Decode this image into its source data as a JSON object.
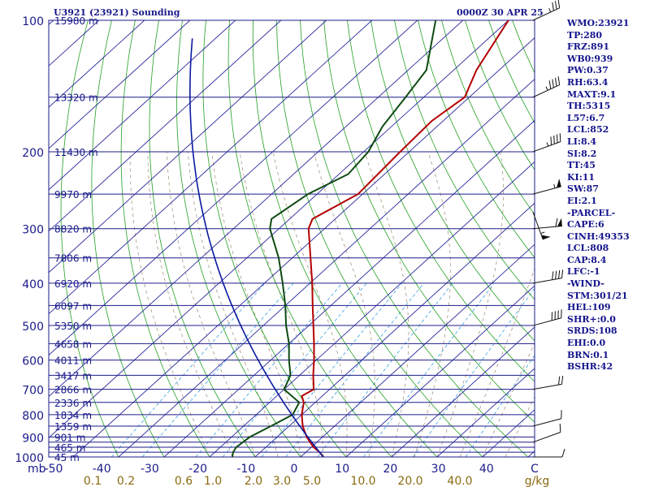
{
  "header": {
    "station_title": "U3921 (23921) Sounding",
    "valid_time": "0000Z 30 APR 25"
  },
  "colors": {
    "isobar": "#1c1c8a",
    "isotherm": "#2a2a9e",
    "dry_adiabat": "#22a022",
    "moist_adiabat": "#9c8a70",
    "mixing_ratio": "#3aa0e0",
    "temperature": "#b40000",
    "dewpoint": "#0d4a12",
    "parcel": "#0a1aa0",
    "label_text": "#1a1a8a",
    "mixing_label_text": "#8a6a10",
    "wind_barb": "#111111"
  },
  "chart_data": {
    "type": "skew-t",
    "pressure_ticks": [
      "100",
      "200",
      "300",
      "400",
      "500",
      "600",
      "700",
      "800",
      "900",
      "1000"
    ],
    "pressure_levels_hpa": [
      100,
      150,
      200,
      250,
      300,
      350,
      400,
      450,
      500,
      550,
      600,
      650,
      700,
      750,
      800,
      850,
      900,
      925,
      950,
      975,
      1000
    ],
    "heights": [
      {
        "p": 100,
        "label": "15980 m"
      },
      {
        "p": 150,
        "label": "13320 m"
      },
      {
        "p": 200,
        "label": "11430 m"
      },
      {
        "p": 250,
        "label": "9970 m"
      },
      {
        "p": 300,
        "label": "8820 m"
      },
      {
        "p": 350,
        "label": "7806 m"
      },
      {
        "p": 400,
        "label": "6920 m"
      },
      {
        "p": 450,
        "label": "6097 m"
      },
      {
        "p": 500,
        "label": "5350 m"
      },
      {
        "p": 550,
        "label": "4658 m"
      },
      {
        "p": 600,
        "label": "4011 m"
      },
      {
        "p": 650,
        "label": "3417 m"
      },
      {
        "p": 700,
        "label": "2866 m"
      },
      {
        "p": 750,
        "label": "2336 m"
      },
      {
        "p": 800,
        "label": "1834 m"
      },
      {
        "p": 850,
        "label": "1359 m"
      },
      {
        "p": 900,
        "label": "901 m"
      },
      {
        "p": 950,
        "label": "465 m"
      },
      {
        "p": 1000,
        "label": "45 m"
      }
    ],
    "x_axis_unit": "mb",
    "temperature_ticks": [
      "-50",
      "-40",
      "-30",
      "-20",
      "-10",
      "0",
      "10",
      "20",
      "30",
      "40",
      "C"
    ],
    "mixing_ratio_labels": [
      "0.1",
      "0.2",
      "0.6",
      "1.0",
      "2.0",
      "3.0",
      "5.0",
      "10.0",
      "20.0",
      "40.0",
      "g/kg"
    ],
    "temperature_profile": [
      {
        "p": 1000,
        "t": 5.0
      },
      {
        "p": 975,
        "t": 3.0
      },
      {
        "p": 950,
        "t": 0.5
      },
      {
        "p": 925,
        "t": -1.5
      },
      {
        "p": 900,
        "t": -3.5
      },
      {
        "p": 850,
        "t": -7.0
      },
      {
        "p": 800,
        "t": -10.0
      },
      {
        "p": 750,
        "t": -12.5
      },
      {
        "p": 725,
        "t": -14.5
      },
      {
        "p": 700,
        "t": -13.5
      },
      {
        "p": 650,
        "t": -17.0
      },
      {
        "p": 600,
        "t": -20.5
      },
      {
        "p": 550,
        "t": -24.5
      },
      {
        "p": 500,
        "t": -29.0
      },
      {
        "p": 450,
        "t": -34.0
      },
      {
        "p": 400,
        "t": -39.5
      },
      {
        "p": 350,
        "t": -46.0
      },
      {
        "p": 300,
        "t": -53.5
      },
      {
        "p": 285,
        "t": -55.0
      },
      {
        "p": 250,
        "t": -51.0
      },
      {
        "p": 200,
        "t": -52.0
      },
      {
        "p": 170,
        "t": -52.5
      },
      {
        "p": 150,
        "t": -51.0
      },
      {
        "p": 130,
        "t": -55.0
      },
      {
        "p": 100,
        "t": -60.0
      }
    ],
    "dewpoint_profile": [
      {
        "p": 1000,
        "t": -15.0
      },
      {
        "p": 975,
        "t": -16.0
      },
      {
        "p": 950,
        "t": -16.5
      },
      {
        "p": 900,
        "t": -16.0
      },
      {
        "p": 850,
        "t": -14.0
      },
      {
        "p": 800,
        "t": -12.0
      },
      {
        "p": 750,
        "t": -13.5
      },
      {
        "p": 700,
        "t": -20.0
      },
      {
        "p": 650,
        "t": -22.0
      },
      {
        "p": 600,
        "t": -26.0
      },
      {
        "p": 550,
        "t": -30.0
      },
      {
        "p": 500,
        "t": -35.0
      },
      {
        "p": 450,
        "t": -40.0
      },
      {
        "p": 400,
        "t": -46.0
      },
      {
        "p": 350,
        "t": -53.0
      },
      {
        "p": 300,
        "t": -62.0
      },
      {
        "p": 285,
        "t": -64.0
      },
      {
        "p": 250,
        "t": -62.0
      },
      {
        "p": 225,
        "t": -58.0
      },
      {
        "p": 200,
        "t": -59.0
      },
      {
        "p": 175,
        "t": -62.0
      },
      {
        "p": 150,
        "t": -64.0
      },
      {
        "p": 130,
        "t": -66.0
      },
      {
        "p": 100,
        "t": -76.0
      }
    ],
    "parcel_start": {
      "p": 1000,
      "t": 5.0
    },
    "winds": [
      {
        "p": 100,
        "dir": 295,
        "kt": 35
      },
      {
        "p": 150,
        "dir": 295,
        "kt": 45
      },
      {
        "p": 200,
        "dir": 290,
        "kt": 45
      },
      {
        "p": 250,
        "dir": 285,
        "kt": 55
      },
      {
        "p": 275,
        "dir": 200,
        "kt": 55
      },
      {
        "p": 300,
        "dir": 275,
        "kt": 60
      },
      {
        "p": 400,
        "dir": 280,
        "kt": 40
      },
      {
        "p": 500,
        "dir": 285,
        "kt": 40
      },
      {
        "p": 700,
        "dir": 280,
        "kt": 20
      },
      {
        "p": 850,
        "dir": 285,
        "kt": 10
      },
      {
        "p": 925,
        "dir": 290,
        "kt": 10
      },
      {
        "p": 1000,
        "dir": 270,
        "kt": 10
      }
    ]
  },
  "indices": [
    "WMO:23921",
    "TP:280",
    "FRZ:891",
    "WB0:939",
    "PW:0.37",
    "RH:63.4",
    "MAXT:9.1",
    "TH:5315",
    "L57:6.7",
    "LCL:852",
    "LI:8.4",
    "SI:8.2",
    "TT:45",
    "KI:11",
    "SW:87",
    "EI:2.1",
    "-PARCEL-",
    "CAPE:6",
    "CINH:49353",
    "LCL:808",
    "CAP:8.4",
    "LFC:-1",
    "-WIND-",
    "STM:301/21",
    "HEL:109",
    "SHR+:0.0",
    "SRDS:108",
    "EHI:0.0",
    "BRN:0.1",
    "BSHR:42"
  ]
}
